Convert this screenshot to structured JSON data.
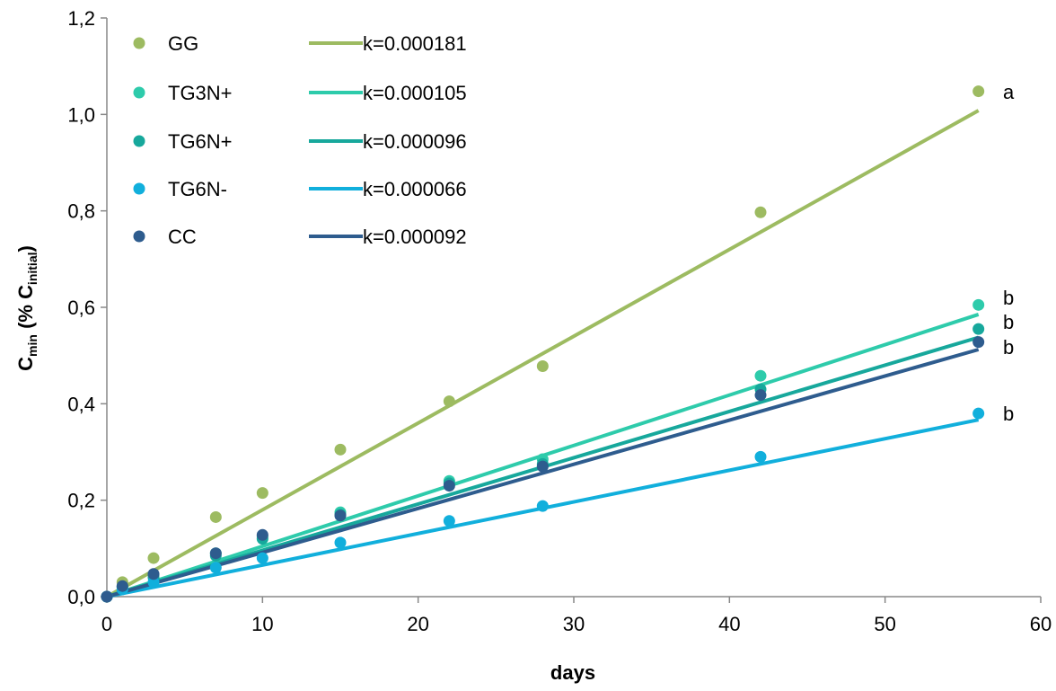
{
  "chart_data": {
    "type": "scatter",
    "xlabel": "days",
    "ylabel": {
      "main": "C",
      "main_sub": "min",
      "open": " (% C",
      "open_sub": "initial",
      "close": ")"
    },
    "xlim": [
      0,
      60
    ],
    "ylim": [
      0,
      1.2
    ],
    "x_ticks": [
      0,
      10,
      20,
      30,
      40,
      50,
      60
    ],
    "y_ticks": [
      0.0,
      0.2,
      0.4,
      0.6,
      0.8,
      1.0,
      1.2
    ],
    "x_tick_labels": [
      "0",
      "10",
      "20",
      "30",
      "40",
      "50",
      "60"
    ],
    "y_tick_labels": [
      "0,0",
      "0,2",
      "0,4",
      "0,6",
      "0,8",
      "1,0",
      "1,2"
    ],
    "grid": false,
    "legend_position": "top-left",
    "x": [
      0,
      1,
      3,
      7,
      10,
      15,
      22,
      28,
      42,
      56
    ],
    "series": [
      {
        "name": "GG",
        "color": "#9dbb61",
        "k_label": "k=0.000181",
        "slope": 0.018,
        "values": [
          0.0,
          0.03,
          0.08,
          0.165,
          0.215,
          0.305,
          0.405,
          0.478,
          0.797,
          1.048
        ],
        "sig": "a"
      },
      {
        "name": "TG3N+",
        "color": "#2ecbab",
        "k_label": "k=0.000105",
        "slope": 0.01045,
        "values": [
          0.0,
          0.02,
          0.045,
          0.09,
          0.125,
          0.175,
          0.24,
          0.285,
          0.458,
          0.605
        ],
        "sig": "b"
      },
      {
        "name": "TG6N+",
        "color": "#17a89c",
        "k_label": "k=0.000096",
        "slope": 0.0096,
        "values": [
          0.0,
          0.02,
          0.04,
          0.085,
          0.12,
          0.17,
          0.235,
          0.275,
          0.43,
          0.555
        ],
        "sig": "b"
      },
      {
        "name": "TG6N-",
        "color": "#11afdc",
        "k_label": "k=0.000066",
        "slope": 0.00655,
        "values": [
          0.0,
          0.015,
          0.03,
          0.06,
          0.08,
          0.112,
          0.157,
          0.188,
          0.29,
          0.38
        ],
        "sig": "b"
      },
      {
        "name": "CC",
        "color": "#2e5c8e",
        "k_label": "k=0.000092",
        "slope": 0.00915,
        "values": [
          0.0,
          0.022,
          0.047,
          0.09,
          0.128,
          0.168,
          0.23,
          0.27,
          0.418,
          0.528
        ],
        "sig": "b"
      }
    ]
  }
}
